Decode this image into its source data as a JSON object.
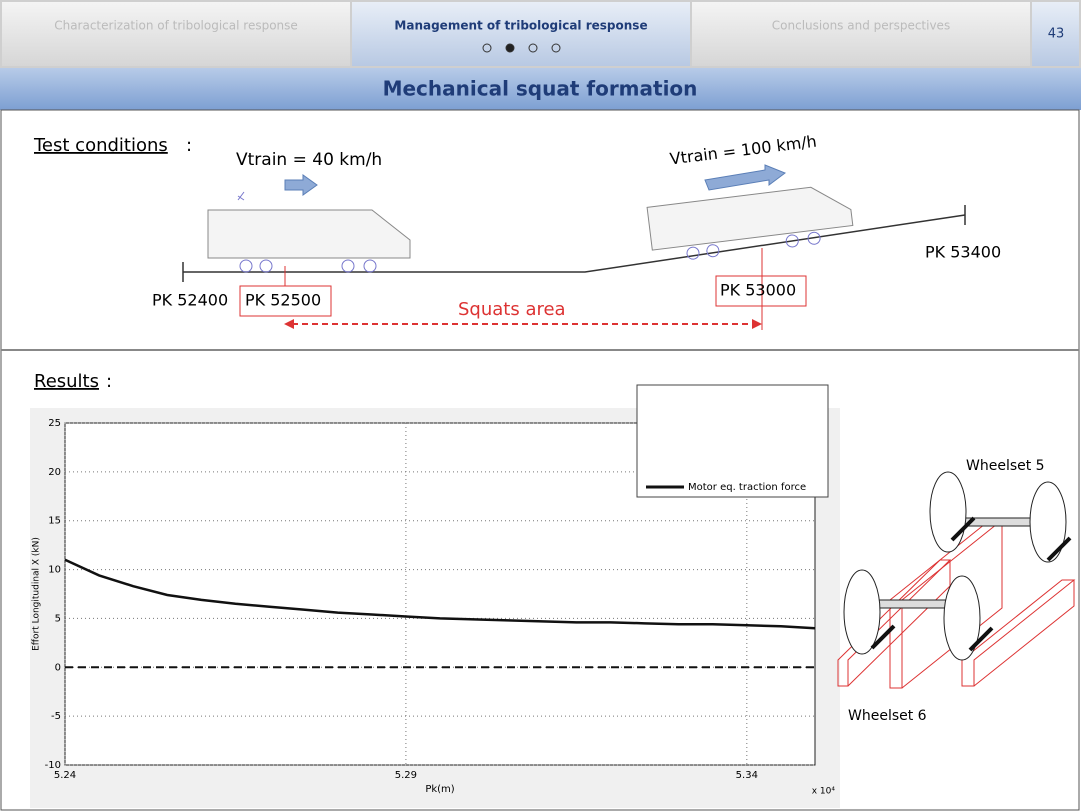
{
  "header": {
    "tabs": [
      "Characterization of tribological response",
      "Management of tribological response",
      "Conclusions and perspectives"
    ],
    "page": "43",
    "title": "Mechanical squat formation"
  },
  "test": {
    "label": "Test conditions",
    "suffix": ":",
    "speed1": "Vtrain = 40 km/h",
    "speed2": "Vtrain = 100 km/h",
    "pk1": "PK 52400",
    "pk2": "PK 52500",
    "pk3": "PK 53000",
    "pk4": "PK 53400",
    "area": "Squats area"
  },
  "results": {
    "label": "Results",
    "suffix": ":",
    "wheelset5": "Wheelset 5",
    "wheelset6": "Wheelset 6"
  },
  "chart_data": {
    "type": "line",
    "ylabel": "Effort Longitudinal X (kN)",
    "xlabel": "Pk(m)",
    "xmultiplier": "x 10⁴",
    "x": [
      5.24,
      5.245,
      5.25,
      5.255,
      5.26,
      5.265,
      5.27,
      5.275,
      5.28,
      5.285,
      5.29,
      5.295,
      5.3,
      5.305,
      5.31,
      5.315,
      5.32,
      5.325,
      5.33,
      5.335,
      5.34,
      5.345,
      5.35
    ],
    "series": [
      {
        "name": "Motor eq. traction force",
        "color": "#111111",
        "values": [
          11,
          9.4,
          8.3,
          7.4,
          6.9,
          6.5,
          6.2,
          5.9,
          5.6,
          5.4,
          5.2,
          5.0,
          4.9,
          4.8,
          4.7,
          4.6,
          4.6,
          4.5,
          4.4,
          4.4,
          4.3,
          4.2,
          4.0
        ]
      }
    ],
    "reference_line": 0,
    "xlim": [
      5.24,
      5.35
    ],
    "xticks": [
      5.24,
      5.29,
      5.34
    ],
    "ylim": [
      -10,
      25
    ],
    "yticks": [
      -10,
      -5,
      0,
      5,
      10,
      15,
      20,
      25
    ],
    "grid": true
  }
}
